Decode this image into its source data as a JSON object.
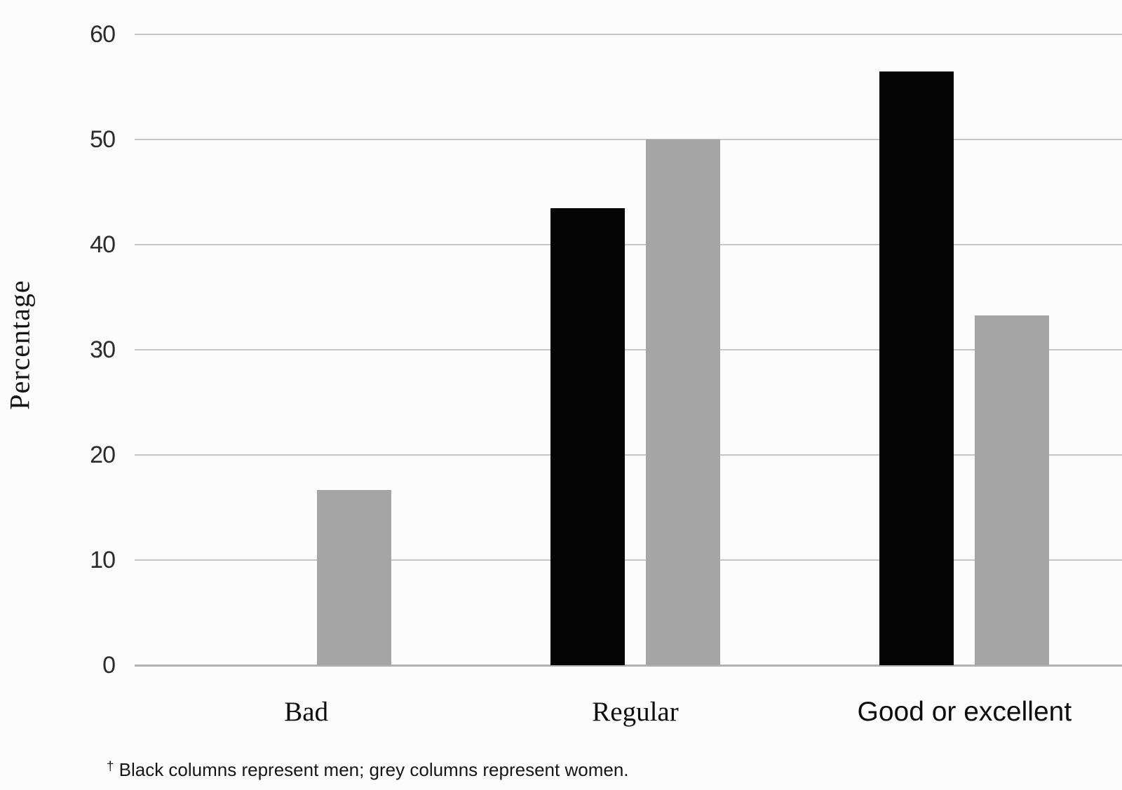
{
  "figure": {
    "footnote_dagger": "†",
    "footnote_text": " Black columns represent men; grey columns represent women."
  },
  "chart_data": {
    "type": "bar",
    "title": "",
    "xlabel": "",
    "ylabel": "Percentage",
    "categories": [
      "Bad",
      "Regular",
      "Good or excellent"
    ],
    "series": [
      {
        "name": "Men",
        "color": "#040404",
        "values": [
          0,
          43.5,
          56.5
        ]
      },
      {
        "name": "Women",
        "color": "#a5a5a5",
        "values": [
          16.7,
          50,
          33.3
        ]
      }
    ],
    "ylim": [
      0,
      60
    ],
    "yticks": [
      0,
      10,
      20,
      30,
      40,
      50,
      60
    ],
    "grid": true,
    "legend_position": "none",
    "footnote": "† Black columns represent men; grey columns represent women.",
    "category_label_styles": [
      "serif",
      "serif",
      "sans"
    ]
  }
}
